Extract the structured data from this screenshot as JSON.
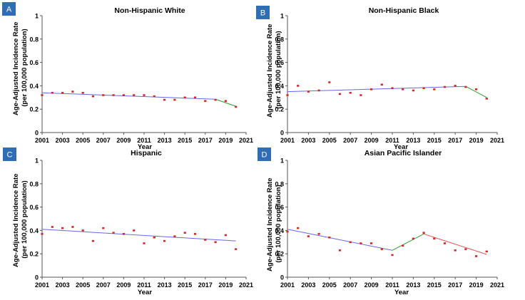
{
  "colors": {
    "badge": "#2f6db5",
    "points": "#d62728",
    "seg_blue": "#6666ee",
    "seg_green": "#2ca02c",
    "seg_red": "#e05555",
    "axis": "#555555"
  },
  "chart_data": [
    {
      "panel": "A",
      "type": "scatter",
      "title": "Non-Hispanic White",
      "xlabel": "Year",
      "ylabel_line1": "Age-Adjusted Incidence Rate",
      "ylabel_line2": "(per 100,000 population)",
      "xlim": [
        2001,
        2021
      ],
      "ylim": [
        0,
        1
      ],
      "xticks": [
        "2001",
        "2003",
        "2005",
        "2007",
        "2009",
        "2011",
        "2013",
        "2015",
        "2017",
        "2019",
        "2021"
      ],
      "yticks": [
        "0",
        "0.2",
        "0.4",
        "0.6",
        "0.8",
        "1"
      ],
      "x": [
        2001,
        2002,
        2003,
        2004,
        2005,
        2006,
        2007,
        2008,
        2009,
        2010,
        2011,
        2012,
        2013,
        2014,
        2015,
        2016,
        2017,
        2018,
        2019,
        2020
      ],
      "y": [
        0.32,
        0.34,
        0.34,
        0.35,
        0.34,
        0.31,
        0.32,
        0.32,
        0.32,
        0.32,
        0.32,
        0.31,
        0.28,
        0.28,
        0.3,
        0.3,
        0.27,
        0.28,
        0.27,
        0.22
      ],
      "segments": [
        {
          "x": [
            2001,
            2018
          ],
          "y": [
            0.34,
            0.285
          ],
          "color": "seg_blue"
        },
        {
          "x": [
            2018,
            2020
          ],
          "y": [
            0.285,
            0.225
          ],
          "color": "seg_green"
        }
      ]
    },
    {
      "panel": "B",
      "type": "scatter",
      "title": "Non-Hispanic Black",
      "xlabel": "Year",
      "ylabel_line1": "Age-Adjusted Incidence Rate",
      "ylabel_line2": "(per 100,000 population)",
      "xlim": [
        2001,
        2021
      ],
      "ylim": [
        0,
        1
      ],
      "xticks": [
        "2001",
        "2003",
        "2005",
        "2007",
        "2009",
        "2011",
        "2013",
        "2015",
        "2017",
        "2019",
        "2021"
      ],
      "yticks": [
        "0",
        "0.2",
        "0.4",
        "0.6",
        "0.8",
        "1"
      ],
      "x": [
        2001,
        2002,
        2003,
        2004,
        2005,
        2006,
        2007,
        2008,
        2009,
        2010,
        2011,
        2012,
        2013,
        2014,
        2015,
        2016,
        2017,
        2018,
        2019,
        2020
      ],
      "y": [
        0.32,
        0.4,
        0.35,
        0.36,
        0.43,
        0.33,
        0.34,
        0.32,
        0.37,
        0.41,
        0.38,
        0.37,
        0.36,
        0.38,
        0.37,
        0.39,
        0.4,
        0.39,
        0.37,
        0.29
      ],
      "segments": [
        {
          "x": [
            2001,
            2018
          ],
          "y": [
            0.35,
            0.395
          ],
          "color": "seg_blue"
        },
        {
          "x": [
            2018,
            2020
          ],
          "y": [
            0.395,
            0.3
          ],
          "color": "seg_green"
        }
      ]
    },
    {
      "panel": "C",
      "type": "scatter",
      "title": "Hispanic",
      "xlabel": "Year",
      "ylabel_line1": "Age-Adjusted Incidence Rate",
      "ylabel_line2": "(per 100,000 population)",
      "xlim": [
        2001,
        2021
      ],
      "ylim": [
        0,
        1
      ],
      "xticks": [
        "2001",
        "2003",
        "2005",
        "2007",
        "2009",
        "2011",
        "2013",
        "2015",
        "2017",
        "2019",
        "2021"
      ],
      "yticks": [
        "0",
        "0.2",
        "0.4",
        "0.6",
        "0.8",
        "1"
      ],
      "x": [
        2001,
        2002,
        2003,
        2004,
        2005,
        2006,
        2007,
        2008,
        2009,
        2010,
        2011,
        2012,
        2013,
        2014,
        2015,
        2016,
        2017,
        2018,
        2019,
        2020
      ],
      "y": [
        0.37,
        0.43,
        0.42,
        0.43,
        0.4,
        0.31,
        0.42,
        0.38,
        0.37,
        0.4,
        0.29,
        0.34,
        0.31,
        0.35,
        0.38,
        0.37,
        0.32,
        0.3,
        0.36,
        0.24
      ],
      "segments": [
        {
          "x": [
            2001,
            2020
          ],
          "y": [
            0.41,
            0.31
          ],
          "color": "seg_blue"
        }
      ]
    },
    {
      "panel": "D",
      "type": "scatter",
      "title": "Asian Pacific Islander",
      "xlabel": "Year",
      "ylabel_line1": "Age-Adjusted Incidence Rate",
      "ylabel_line2": "(per 100,000 population)",
      "xlim": [
        2001,
        2021
      ],
      "ylim": [
        0,
        1
      ],
      "xticks": [
        "2001",
        "2003",
        "2005",
        "2007",
        "2009",
        "2011",
        "2013",
        "2015",
        "2017",
        "2019",
        "2021"
      ],
      "yticks": [
        "0",
        "0.2",
        "0.4",
        "0.6",
        "0.8",
        "1"
      ],
      "x": [
        2001,
        2002,
        2003,
        2004,
        2005,
        2006,
        2007,
        2008,
        2009,
        2010,
        2011,
        2012,
        2013,
        2014,
        2015,
        2016,
        2017,
        2018,
        2019,
        2020
      ],
      "y": [
        0.39,
        0.42,
        0.35,
        0.37,
        0.34,
        0.23,
        0.3,
        0.29,
        0.29,
        0.24,
        0.19,
        0.27,
        0.33,
        0.38,
        0.33,
        0.29,
        0.23,
        0.24,
        0.18,
        0.22
      ],
      "segments": [
        {
          "x": [
            2001,
            2011
          ],
          "y": [
            0.41,
            0.23
          ],
          "color": "seg_blue"
        },
        {
          "x": [
            2011,
            2014
          ],
          "y": [
            0.23,
            0.37
          ],
          "color": "seg_green"
        },
        {
          "x": [
            2014,
            2020
          ],
          "y": [
            0.37,
            0.195
          ],
          "color": "seg_red"
        }
      ]
    }
  ]
}
